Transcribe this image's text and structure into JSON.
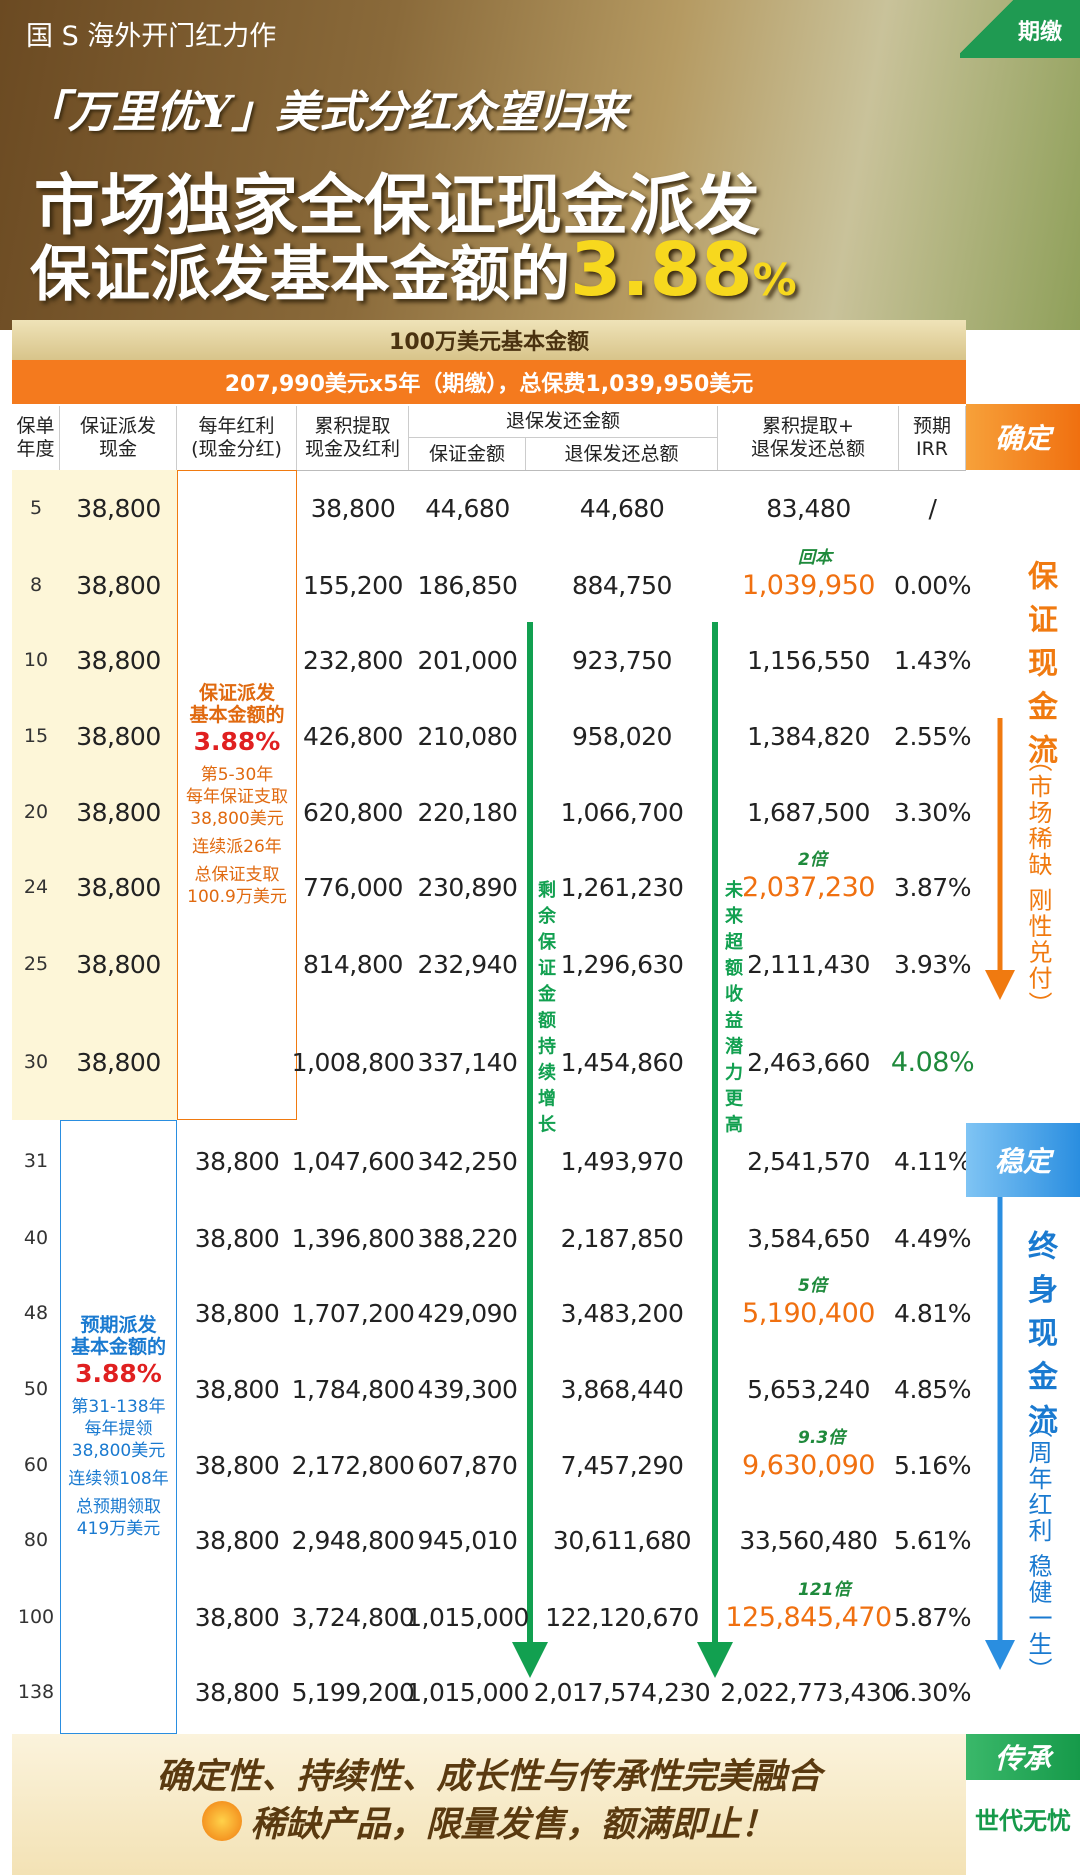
{
  "header": {
    "brand": "国 S 海外开门红力作",
    "tagline": "「万里优Y」美式分红众望归来",
    "headline1": "市场独家全保证现金派发",
    "headline2": "保证派发基本金额的",
    "headline2_num": "3.88",
    "headline2_unit": "%",
    "corner": "期缴"
  },
  "table": {
    "band1": "100万美元基本金额",
    "band2": "207,990美元x5年（期缴），总保费1,039,950美元",
    "columns": [
      [
        "保单",
        "年度"
      ],
      [
        "保证派发",
        "现金"
      ],
      [
        "每年红利",
        "(现金分红)"
      ],
      [
        "累积提取",
        "现金及红利"
      ],
      [
        "保证金额"
      ],
      [
        "退保发还总额"
      ],
      [
        "累积提取+",
        "退保发还总额"
      ],
      [
        "预期",
        "IRR"
      ]
    ],
    "span_header": "退保发还金额",
    "groups": [
      {
        "pay_column": "cash",
        "block": [
          "保证派发",
          "基本金额的",
          "3.88%",
          "第5-30年",
          "每年保证支取",
          "38,800美元",
          "连续派26年",
          "总保证支取",
          "100.9万美元"
        ],
        "rows": [
          {
            "year": "5",
            "pay": "38,800",
            "cum": "38,800",
            "guar": "44,680",
            "total": "44,680",
            "sum": "83,480",
            "irr": "/"
          },
          {
            "year": "8",
            "pay": "38,800",
            "cum": "155,200",
            "guar": "186,850",
            "total": "884,750",
            "sum": "1,039,950",
            "irr": "0.00%",
            "note": "回本"
          },
          {
            "year": "10",
            "pay": "38,800",
            "cum": "232,800",
            "guar": "201,000",
            "total": "923,750",
            "sum": "1,156,550",
            "irr": "1.43%"
          },
          {
            "year": "15",
            "pay": "38,800",
            "cum": "426,800",
            "guar": "210,080",
            "total": "958,020",
            "sum": "1,384,820",
            "irr": "2.55%"
          },
          {
            "year": "20",
            "pay": "38,800",
            "cum": "620,800",
            "guar": "220,180",
            "total": "1,066,700",
            "sum": "1,687,500",
            "irr": "3.30%"
          },
          {
            "year": "24",
            "pay": "38,800",
            "cum": "776,000",
            "guar": "230,890",
            "total": "1,261,230",
            "sum": "2,037,230",
            "irr": "3.87%",
            "note": "2倍"
          },
          {
            "year": "25",
            "pay": "38,800",
            "cum": "814,800",
            "guar": "232,940",
            "total": "1,296,630",
            "sum": "2,111,430",
            "irr": "3.93%"
          },
          {
            "year": "30",
            "pay": "38,800",
            "cum": "1,008,800",
            "guar": "337,140",
            "total": "1,454,860",
            "sum": "2,463,660",
            "irr": "4.08%",
            "irr_color": "#1f8a3c"
          }
        ]
      },
      {
        "pay_column": "dividend",
        "block": [
          "预期派发",
          "基本金额的",
          "3.88%",
          "第31-138年",
          "每年提领",
          "38,800美元",
          "连续领108年",
          "总预期领取",
          "419万美元"
        ],
        "rows": [
          {
            "year": "31",
            "pay": "38,800",
            "cum": "1,047,600",
            "guar": "342,250",
            "total": "1,493,970",
            "sum": "2,541,570",
            "irr": "4.11%"
          },
          {
            "year": "40",
            "pay": "38,800",
            "cum": "1,396,800",
            "guar": "388,220",
            "total": "2,187,850",
            "sum": "3,584,650",
            "irr": "4.49%"
          },
          {
            "year": "48",
            "pay": "38,800",
            "cum": "1,707,200",
            "guar": "429,090",
            "total": "3,483,200",
            "sum": "5,190,400",
            "irr": "4.81%",
            "note": "5倍"
          },
          {
            "year": "50",
            "pay": "38,800",
            "cum": "1,784,800",
            "guar": "439,300",
            "total": "3,868,440",
            "sum": "5,653,240",
            "irr": "4.85%"
          },
          {
            "year": "60",
            "pay": "38,800",
            "cum": "2,172,800",
            "guar": "607,870",
            "total": "7,457,290",
            "sum": "9,630,090",
            "irr": "5.16%",
            "note": "9.3倍"
          },
          {
            "year": "80",
            "pay": "38,800",
            "cum": "2,948,800",
            "guar": "945,010",
            "total": "30,611,680",
            "sum": "33,560,480",
            "irr": "5.61%"
          },
          {
            "year": "100",
            "pay": "38,800",
            "cum": "3,724,800",
            "guar": "1,015,000",
            "total": "122,120,670",
            "sum": "125,845,470",
            "irr": "5.87%",
            "note": "121倍"
          },
          {
            "year": "138",
            "pay": "38,800",
            "cum": "5,199,200",
            "guar": "1,015,000",
            "total": "2,017,574,230",
            "sum": "2,022,773,430",
            "irr": "6.30%"
          }
        ]
      }
    ],
    "arrow1": "剩余保证金额持续增长",
    "arrow2": "未来超额收益潜力更高"
  },
  "side": {
    "label1": "确定",
    "title1": "保证现金流",
    "sub1": "（市场稀缺 刚性兑付）",
    "label2": "稳定",
    "title2": "终身现金流",
    "sub2": "（周年红利 稳健一生）",
    "label3": "传承",
    "title3": "世代无忧"
  },
  "footer": {
    "line1": "确定性、持续性、成长性与传承性完美融合",
    "line2": "稀缺产品，限量发售，额满即止！"
  }
}
